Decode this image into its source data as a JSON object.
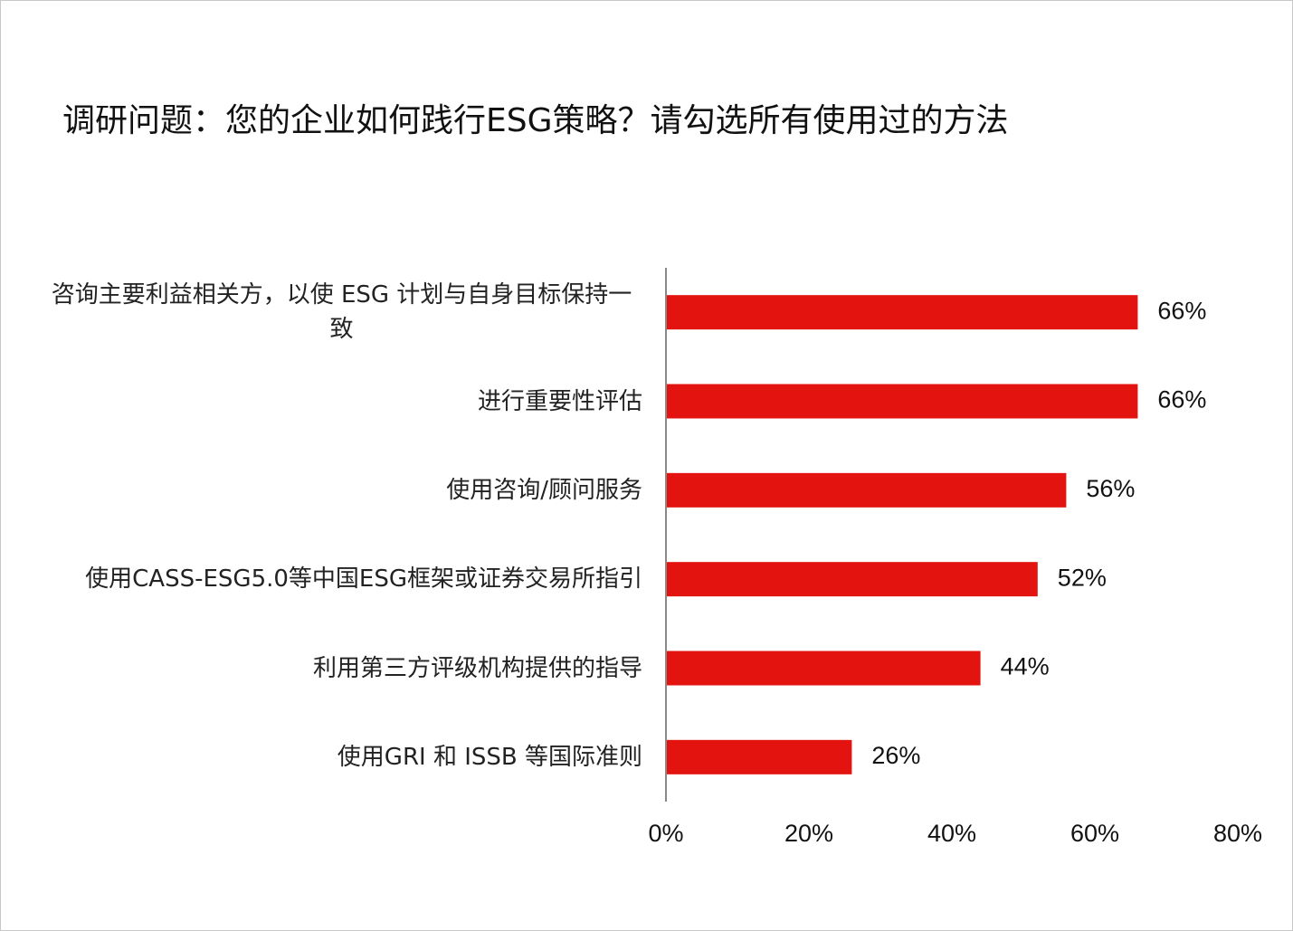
{
  "chart_data": {
    "type": "barh",
    "title": "调研问题：您的企业如何践行ESG策略？请勾选所有使用过的方法",
    "categories": [
      "咨询主要利益相关方，以使 ESG 计划与自身目标保持一致",
      "进行重要性评估",
      "使用咨询/顾问服务",
      "使用CASS-ESG5.0等中国ESG框架或证券交易所指引",
      "利用第三方评级机构提供的指导",
      "使用GRI 和 ISSB 等国际准则"
    ],
    "values": [
      66,
      66,
      56,
      52,
      44,
      26
    ],
    "value_labels": [
      "66%",
      "66%",
      "56%",
      "52%",
      "44%",
      "26%"
    ],
    "color": "#e3140f",
    "xlim": [
      0,
      80
    ],
    "xticks": [
      {
        "value": 0,
        "label": "0%"
      },
      {
        "value": 20,
        "label": "20%"
      },
      {
        "value": 40,
        "label": "40%"
      },
      {
        "value": 60,
        "label": "60%"
      },
      {
        "value": 80,
        "label": "80%"
      }
    ]
  }
}
